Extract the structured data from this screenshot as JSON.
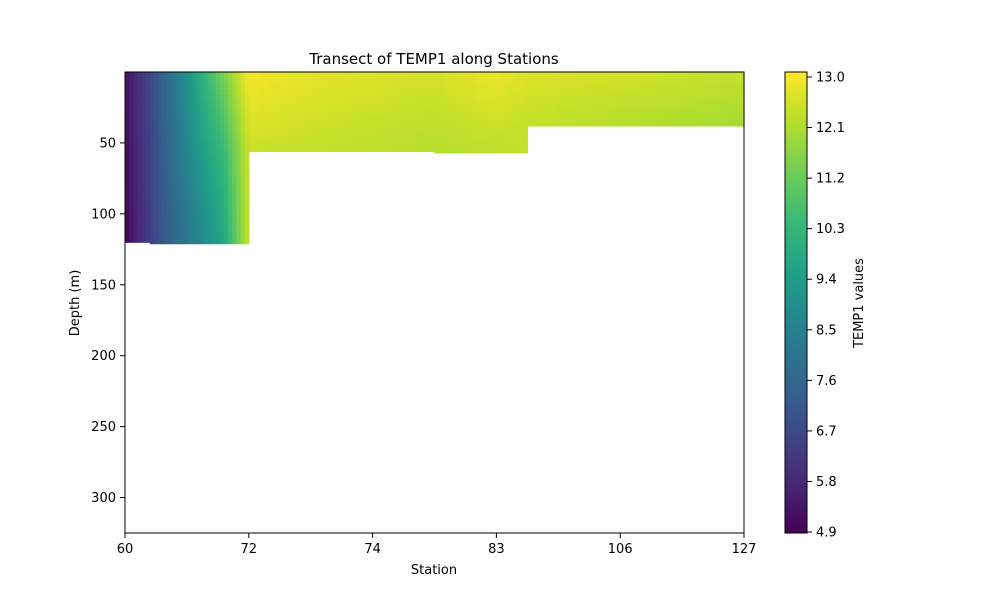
{
  "chart_data": {
    "type": "heatmap",
    "title": "Transect of TEMP1 along Stations",
    "xlabel": "Station",
    "ylabel": "Depth (m)",
    "y_inverted": true,
    "ylim": [
      325,
      0
    ],
    "stations": [
      "60",
      "72",
      "74",
      "83",
      "106",
      "127"
    ],
    "yticks": [
      50,
      100,
      150,
      200,
      250,
      300
    ],
    "colorbar": {
      "label": "TEMP1 values",
      "colormap": "viridis",
      "range": [
        4.9,
        13.0
      ],
      "ticks": [
        "4.9",
        "5.8",
        "6.7",
        "7.6",
        "8.5",
        "9.4",
        "10.3",
        "11.2",
        "12.1",
        "13.0"
      ]
    },
    "grid": false,
    "legend": "none",
    "profiles": [
      {
        "station_pos": 0.0,
        "max_depth": 120,
        "temps": [
          [
            0,
            5.3
          ],
          [
            120,
            5.0
          ]
        ]
      },
      {
        "station_pos": 0.2,
        "max_depth": 121,
        "temps": [
          [
            0,
            6.6
          ],
          [
            120,
            6.4
          ]
        ]
      },
      {
        "station_pos": 0.4,
        "max_depth": 121,
        "temps": [
          [
            0,
            8.2
          ],
          [
            120,
            7.6
          ]
        ]
      },
      {
        "station_pos": 0.6,
        "max_depth": 121,
        "temps": [
          [
            0,
            9.9
          ],
          [
            120,
            8.6
          ]
        ]
      },
      {
        "station_pos": 0.8,
        "max_depth": 121,
        "temps": [
          [
            0,
            11.4
          ],
          [
            60,
            10.3
          ],
          [
            120,
            9.7
          ]
        ]
      },
      {
        "station_pos": 1.0,
        "max_depth": 56,
        "temps": [
          [
            0,
            12.9
          ],
          [
            56,
            12.4
          ]
        ]
      },
      {
        "station_pos": 1.5,
        "max_depth": 56,
        "temps": [
          [
            0,
            12.7
          ],
          [
            56,
            12.3
          ]
        ]
      },
      {
        "station_pos": 2.0,
        "max_depth": 56,
        "temps": [
          [
            0,
            12.6
          ],
          [
            56,
            12.2
          ]
        ]
      },
      {
        "station_pos": 2.5,
        "max_depth": 57,
        "temps": [
          [
            0,
            12.5
          ],
          [
            57,
            12.1
          ]
        ]
      },
      {
        "station_pos": 3.0,
        "max_depth": 57,
        "temps": [
          [
            0,
            12.8
          ],
          [
            57,
            12.2
          ]
        ]
      },
      {
        "station_pos": 3.25,
        "max_depth": 38,
        "temps": [
          [
            0,
            12.6
          ],
          [
            38,
            12.3
          ]
        ]
      },
      {
        "station_pos": 4.0,
        "max_depth": 38,
        "temps": [
          [
            0,
            12.5
          ],
          [
            38,
            12.1
          ]
        ]
      },
      {
        "station_pos": 5.0,
        "max_depth": 38,
        "temps": [
          [
            0,
            12.3
          ],
          [
            38,
            11.9
          ]
        ]
      }
    ]
  }
}
